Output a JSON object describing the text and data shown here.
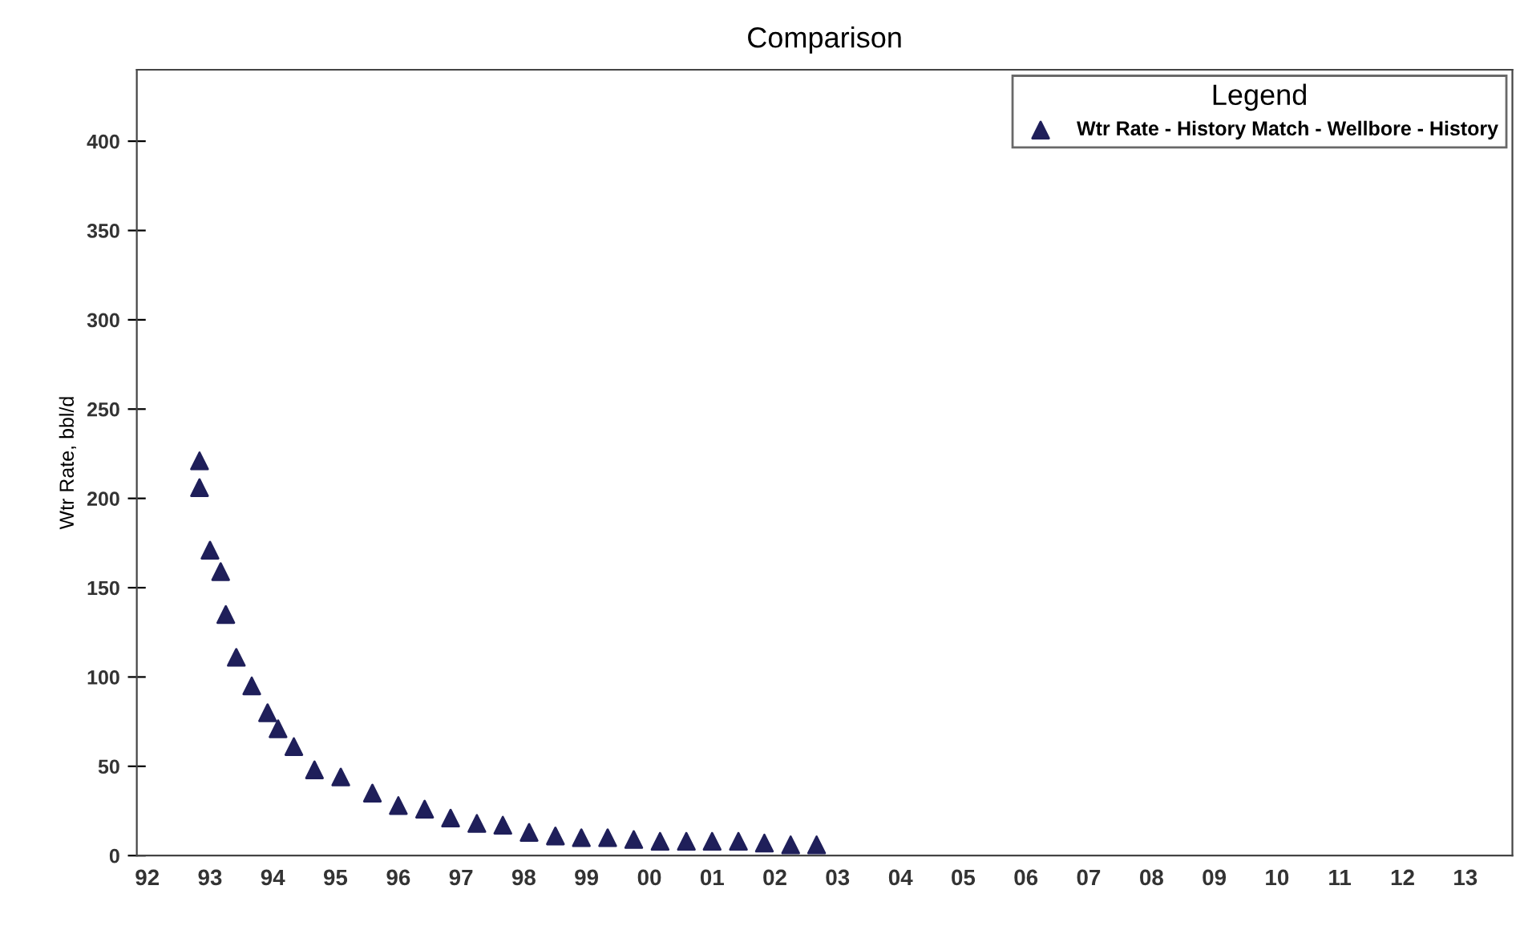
{
  "chart_data": {
    "type": "scatter",
    "title": "Comparison",
    "ylabel": "Wtr Rate, bbl/d",
    "legend_title": "Legend",
    "legend": "top right",
    "marker": "triangle",
    "grid": false,
    "series": [
      {
        "name": "Wtr Rate - History Match - Wellbore - History",
        "color": "#1f1f5a",
        "x": [
          "1993-05",
          "1993-05",
          "1993-07",
          "1993-09",
          "1993-10",
          "1993-12",
          "1994-03",
          "1994-06",
          "1994-08",
          "1994-11",
          "1995-03",
          "1995-08",
          "1996-02",
          "1996-07",
          "1996-12",
          "1997-05",
          "1997-10",
          "1998-03",
          "1998-08",
          "1999-01",
          "1999-06",
          "1999-11",
          "2000-04",
          "2000-09",
          "2001-02",
          "2001-07",
          "2001-12",
          "2002-05",
          "2002-10",
          "2003-03"
        ],
        "values": [
          221,
          206,
          171,
          159,
          135,
          111,
          95,
          80,
          71,
          61,
          48,
          44,
          35,
          28,
          26,
          21,
          18,
          17,
          13,
          11,
          10,
          10,
          9,
          8,
          8,
          8,
          8,
          7,
          6,
          6
        ]
      }
    ],
    "xlim": [
      "1992-05",
      "2014-04"
    ],
    "ylim": [
      0,
      440
    ],
    "yticks": [
      0,
      50,
      100,
      150,
      200,
      250,
      300,
      350,
      400
    ],
    "xticks": [
      {
        "value": "1992-07-01",
        "label": "92"
      },
      {
        "value": "1993-07-01",
        "label": "93"
      },
      {
        "value": "1994-07-01",
        "label": "94"
      },
      {
        "value": "1995-07-01",
        "label": "95"
      },
      {
        "value": "1996-07-01",
        "label": "96"
      },
      {
        "value": "1997-07-01",
        "label": "97"
      },
      {
        "value": "1998-07-01",
        "label": "98"
      },
      {
        "value": "1999-07-01",
        "label": "99"
      },
      {
        "value": "2000-07-01",
        "label": "00"
      },
      {
        "value": "2001-07-01",
        "label": "01"
      },
      {
        "value": "2002-07-01",
        "label": "02"
      },
      {
        "value": "2003-07-01",
        "label": "03"
      },
      {
        "value": "2004-07-01",
        "label": "04"
      },
      {
        "value": "2005-07-01",
        "label": "05"
      },
      {
        "value": "2006-07-01",
        "label": "06"
      },
      {
        "value": "2007-07-01",
        "label": "07"
      },
      {
        "value": "2008-07-01",
        "label": "08"
      },
      {
        "value": "2009-07-01",
        "label": "09"
      },
      {
        "value": "2010-07-01",
        "label": "10"
      },
      {
        "value": "2011-07-01",
        "label": "11"
      },
      {
        "value": "2012-07-01",
        "label": "12"
      },
      {
        "value": "2013-07-01",
        "label": "13"
      }
    ]
  }
}
